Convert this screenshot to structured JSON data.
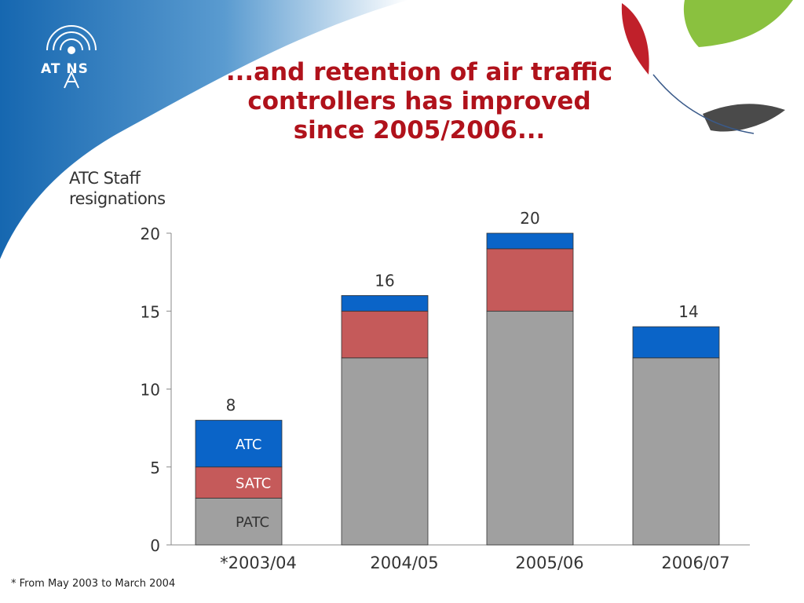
{
  "slide": {
    "logo": "AT NS",
    "title_lines": [
      "...and retention of air traffic",
      "controllers has improved",
      "since 2005/2006..."
    ],
    "footnote": "* From May 2003 to March 2004",
    "colors": {
      "title": "#b0121b",
      "brand_blue": "#1a6db5",
      "brand_red": "#c0202a",
      "brand_green": "#8ac13f"
    }
  },
  "chart_data": {
    "type": "bar",
    "stacked": true,
    "title": "",
    "ylabel_lines": [
      "ATC Staff",
      "resignations"
    ],
    "xlabel": "",
    "categories": [
      "*2003/04",
      "2004/05",
      "2005/06",
      "2006/07"
    ],
    "series": [
      {
        "name": "PATC",
        "values": [
          3,
          12,
          15,
          12
        ],
        "color": "#a0a0a0"
      },
      {
        "name": "SATC",
        "values": [
          2,
          3,
          4,
          0
        ],
        "color": "#c55a5a"
      },
      {
        "name": "ATC",
        "values": [
          3,
          1,
          1,
          2
        ],
        "color": "#0a64c8"
      }
    ],
    "totals": [
      8,
      16,
      20,
      14
    ],
    "ylim": [
      0,
      20
    ],
    "yticks": [
      0,
      5,
      10,
      15,
      20
    ],
    "grid": false,
    "legend": "inside first bar"
  }
}
